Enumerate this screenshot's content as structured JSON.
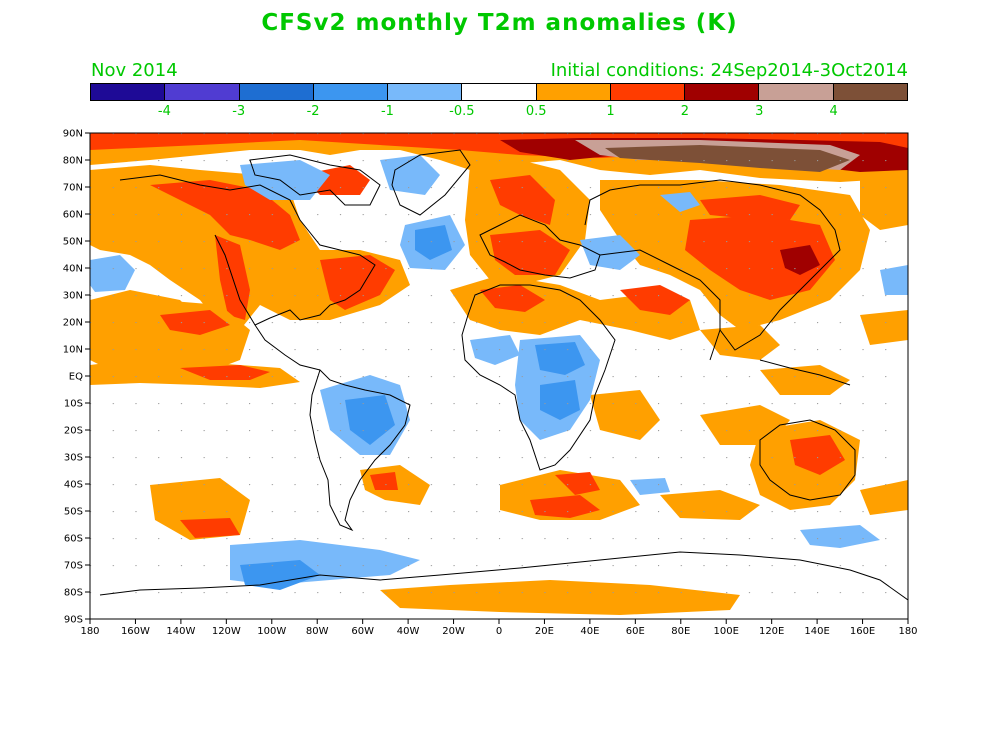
{
  "title": "CFSv2 monthly T2m anomalies (K)",
  "month_label": "Nov 2014",
  "init_label": "Initial conditions: 24Sep2014-3Oct2014",
  "colorbar": {
    "colors": [
      "#1e0a96",
      "#503cd2",
      "#1e6ed2",
      "#3c96f0",
      "#78b9fa",
      "#ffffff",
      "#ffa000",
      "#ff3c00",
      "#a00000",
      "#c8a096",
      "#7d5037"
    ],
    "labels": [
      "-4",
      "-3",
      "-2",
      "-1",
      "-0.5",
      "0.5",
      "1",
      "2",
      "3",
      "4"
    ]
  },
  "axes": {
    "lon_labels": [
      "180",
      "160W",
      "140W",
      "120W",
      "100W",
      "80W",
      "60W",
      "40W",
      "20W",
      "0",
      "20E",
      "40E",
      "60E",
      "80E",
      "100E",
      "120E",
      "140E",
      "160E",
      "180"
    ],
    "lat_labels": [
      "90N",
      "80N",
      "70N",
      "60N",
      "50N",
      "40N",
      "30N",
      "20N",
      "10N",
      "EQ",
      "10S",
      "20S",
      "30S",
      "40S",
      "50S",
      "60S",
      "70S",
      "80S",
      "90S"
    ]
  },
  "colors": {
    "label_green": "#00c800",
    "anom_orange": "#ffa000",
    "anom_red": "#ff3c00",
    "anom_darkred": "#a00000",
    "anom_pink": "#c8a096",
    "anom_brown": "#7d5037",
    "anom_lightblue": "#78b9fa",
    "anom_blue": "#3c96f0",
    "anom_midblue": "#1e6ed2"
  }
}
